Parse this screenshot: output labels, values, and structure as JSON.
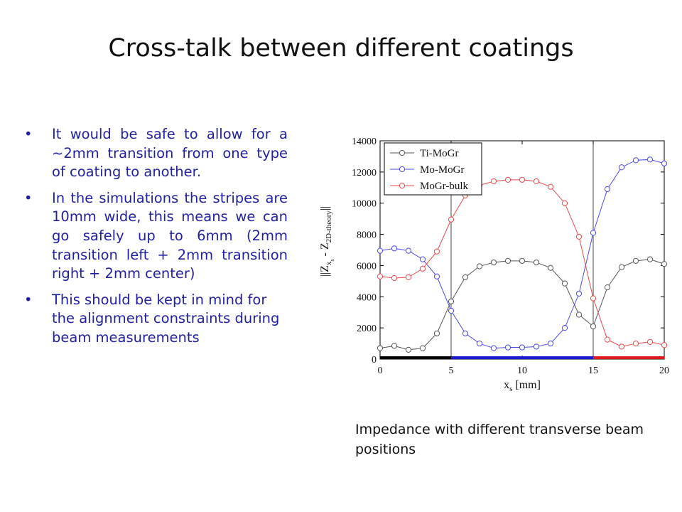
{
  "slide": {
    "title": "Cross-talk between different coatings",
    "bullets": [
      "It would be safe to allow for a ~2mm transition from one type of coating to another.",
      "In the simulations the stripes are 10mm wide, this means we can go safely up to 6mm (2mm transition left + 2mm transition right + 2mm center)",
      "This should be kept in mind for the alignment constraints during beam measurements"
    ],
    "bullet_glyph": "•",
    "caption": "Impedance with different transverse beam positions"
  },
  "chart_data": {
    "type": "line",
    "xlabel": "x",
    "xlabel_sub": "s",
    "xlabel_unit": "[mm]",
    "ylabel": "||Z",
    "ylabel_sub1": "x",
    "ylabel_subsub": "s",
    "ylabel_mid": " - Z",
    "ylabel_sub2": "2D-theory",
    "ylabel_end": "||",
    "xlim": [
      0,
      20
    ],
    "ylim": [
      0,
      14000
    ],
    "xticks": [
      0,
      5,
      10,
      15,
      20
    ],
    "yticks": [
      0,
      2000,
      4000,
      6000,
      8000,
      10000,
      12000,
      14000
    ],
    "vlines": [
      5,
      15
    ],
    "grid": false,
    "legend_position": "top-left",
    "x": [
      0,
      1,
      2,
      3,
      4,
      5,
      6,
      7,
      8,
      9,
      10,
      11,
      12,
      13,
      14,
      15,
      16,
      17,
      18,
      19,
      20
    ],
    "series": [
      {
        "name": "Ti-MoGr",
        "color": "#555555",
        "values": [
          700,
          850,
          600,
          700,
          1650,
          3700,
          5250,
          5950,
          6200,
          6300,
          6300,
          6200,
          5850,
          4850,
          2850,
          2100,
          4600,
          5900,
          6300,
          6400,
          6100
        ]
      },
      {
        "name": "Mo-MoGr",
        "color": "#4a4ae8",
        "values": [
          6950,
          7100,
          6950,
          6400,
          5300,
          3100,
          1650,
          1000,
          700,
          750,
          750,
          800,
          1000,
          2000,
          4200,
          8100,
          10900,
          12300,
          12750,
          12800,
          12550
        ]
      },
      {
        "name": "MoGr-bulk",
        "color": "#e84a4a",
        "values": [
          5300,
          5200,
          5250,
          5800,
          6900,
          8950,
          10500,
          11150,
          11400,
          11500,
          11500,
          11400,
          11050,
          10000,
          7850,
          3900,
          1250,
          800,
          1000,
          1100,
          900
        ]
      }
    ],
    "region_bar": [
      {
        "from": 0,
        "to": 5,
        "color": "#000000"
      },
      {
        "from": 5,
        "to": 15,
        "color": "#1a1ad6"
      },
      {
        "from": 15,
        "to": 20,
        "color": "#e01a1a"
      }
    ]
  }
}
